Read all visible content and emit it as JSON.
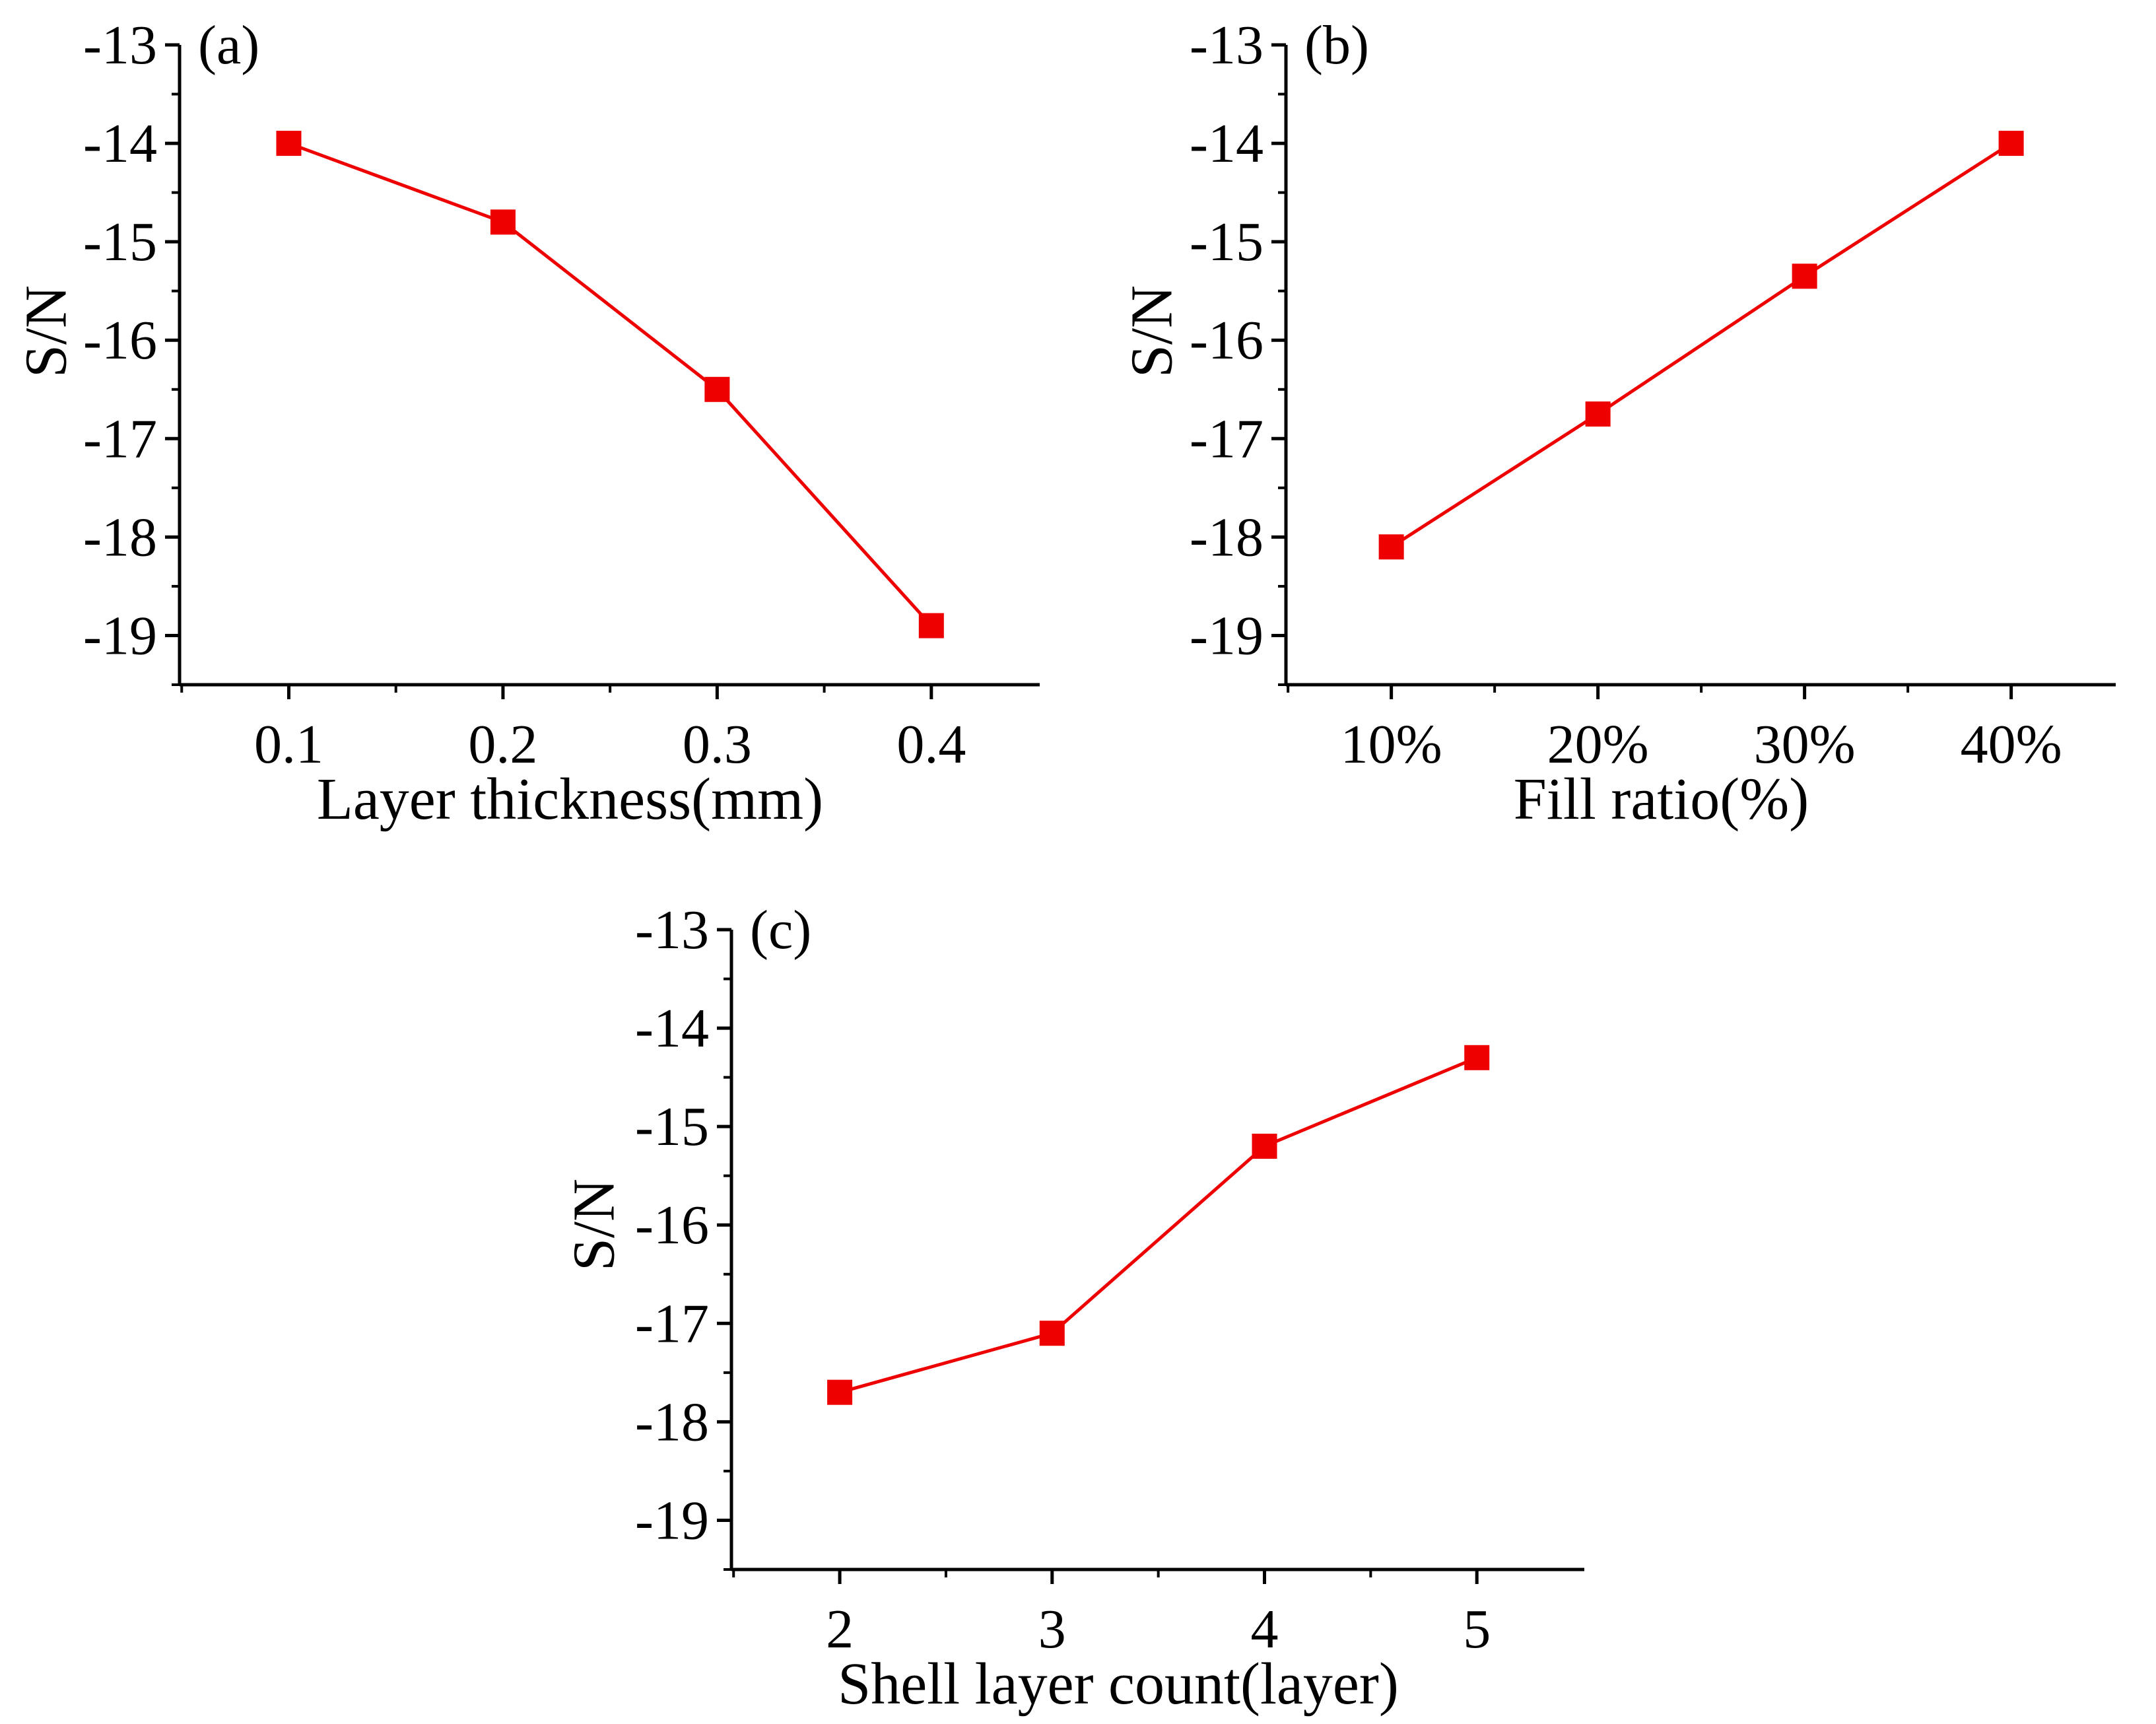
{
  "chart_data": [
    {
      "type": "line",
      "panel_label": "(a)",
      "xlabel": "Layer thickness(mm)",
      "ylabel": "S/N",
      "categories": [
        "0.1",
        "0.2",
        "0.3",
        "0.4"
      ],
      "values": [
        -14.0,
        -14.8,
        -16.5,
        -18.9
      ],
      "ylim": [
        -19.5,
        -13
      ],
      "yticks": [
        "-13",
        "-14",
        "-15",
        "-16",
        "-17",
        "-18",
        "-19"
      ],
      "grid": false,
      "color": "#ee0000"
    },
    {
      "type": "line",
      "panel_label": "(b)",
      "xlabel": "Fill ratio(%)",
      "ylabel": "S/N",
      "categories": [
        "10%",
        "20%",
        "30%",
        "40%"
      ],
      "values": [
        -18.1,
        -16.75,
        -15.35,
        -14.0
      ],
      "ylim": [
        -19.5,
        -13
      ],
      "yticks": [
        "-13",
        "-14",
        "-15",
        "-16",
        "-17",
        "-18",
        "-19"
      ],
      "grid": false,
      "color": "#ee0000"
    },
    {
      "type": "line",
      "panel_label": "(c)",
      "xlabel": "Shell layer count(layer)",
      "ylabel": "S/N",
      "categories": [
        "2",
        "3",
        "4",
        "5"
      ],
      "values": [
        -17.7,
        -17.1,
        -15.2,
        -14.3
      ],
      "ylim": [
        -19.5,
        -13
      ],
      "yticks": [
        "-13",
        "-14",
        "-15",
        "-16",
        "-17",
        "-18",
        "-19"
      ],
      "grid": false,
      "color": "#ee0000"
    }
  ]
}
